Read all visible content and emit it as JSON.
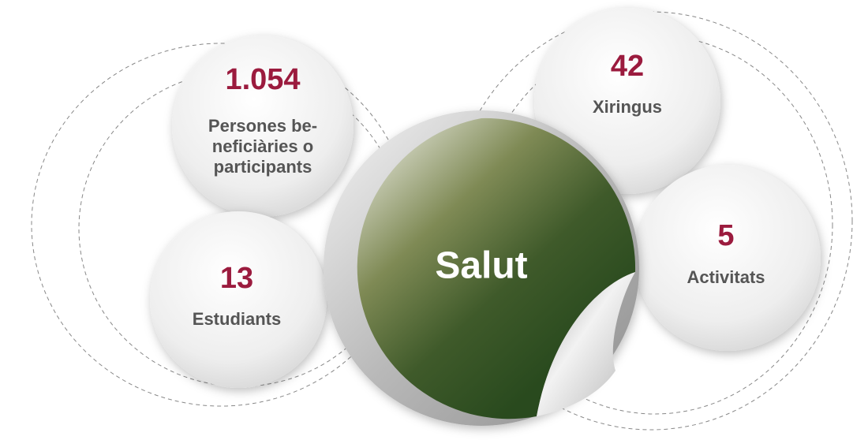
{
  "center": {
    "title": "Salut"
  },
  "items": [
    {
      "value": "1.054",
      "label": [
        "Persones be-",
        "neficiàries o",
        "participants"
      ]
    },
    {
      "value": "13",
      "label": [
        "Estudiants"
      ]
    },
    {
      "value": "42",
      "label": [
        "Xiringus"
      ]
    },
    {
      "value": "5",
      "label": [
        "Activitats"
      ]
    }
  ]
}
